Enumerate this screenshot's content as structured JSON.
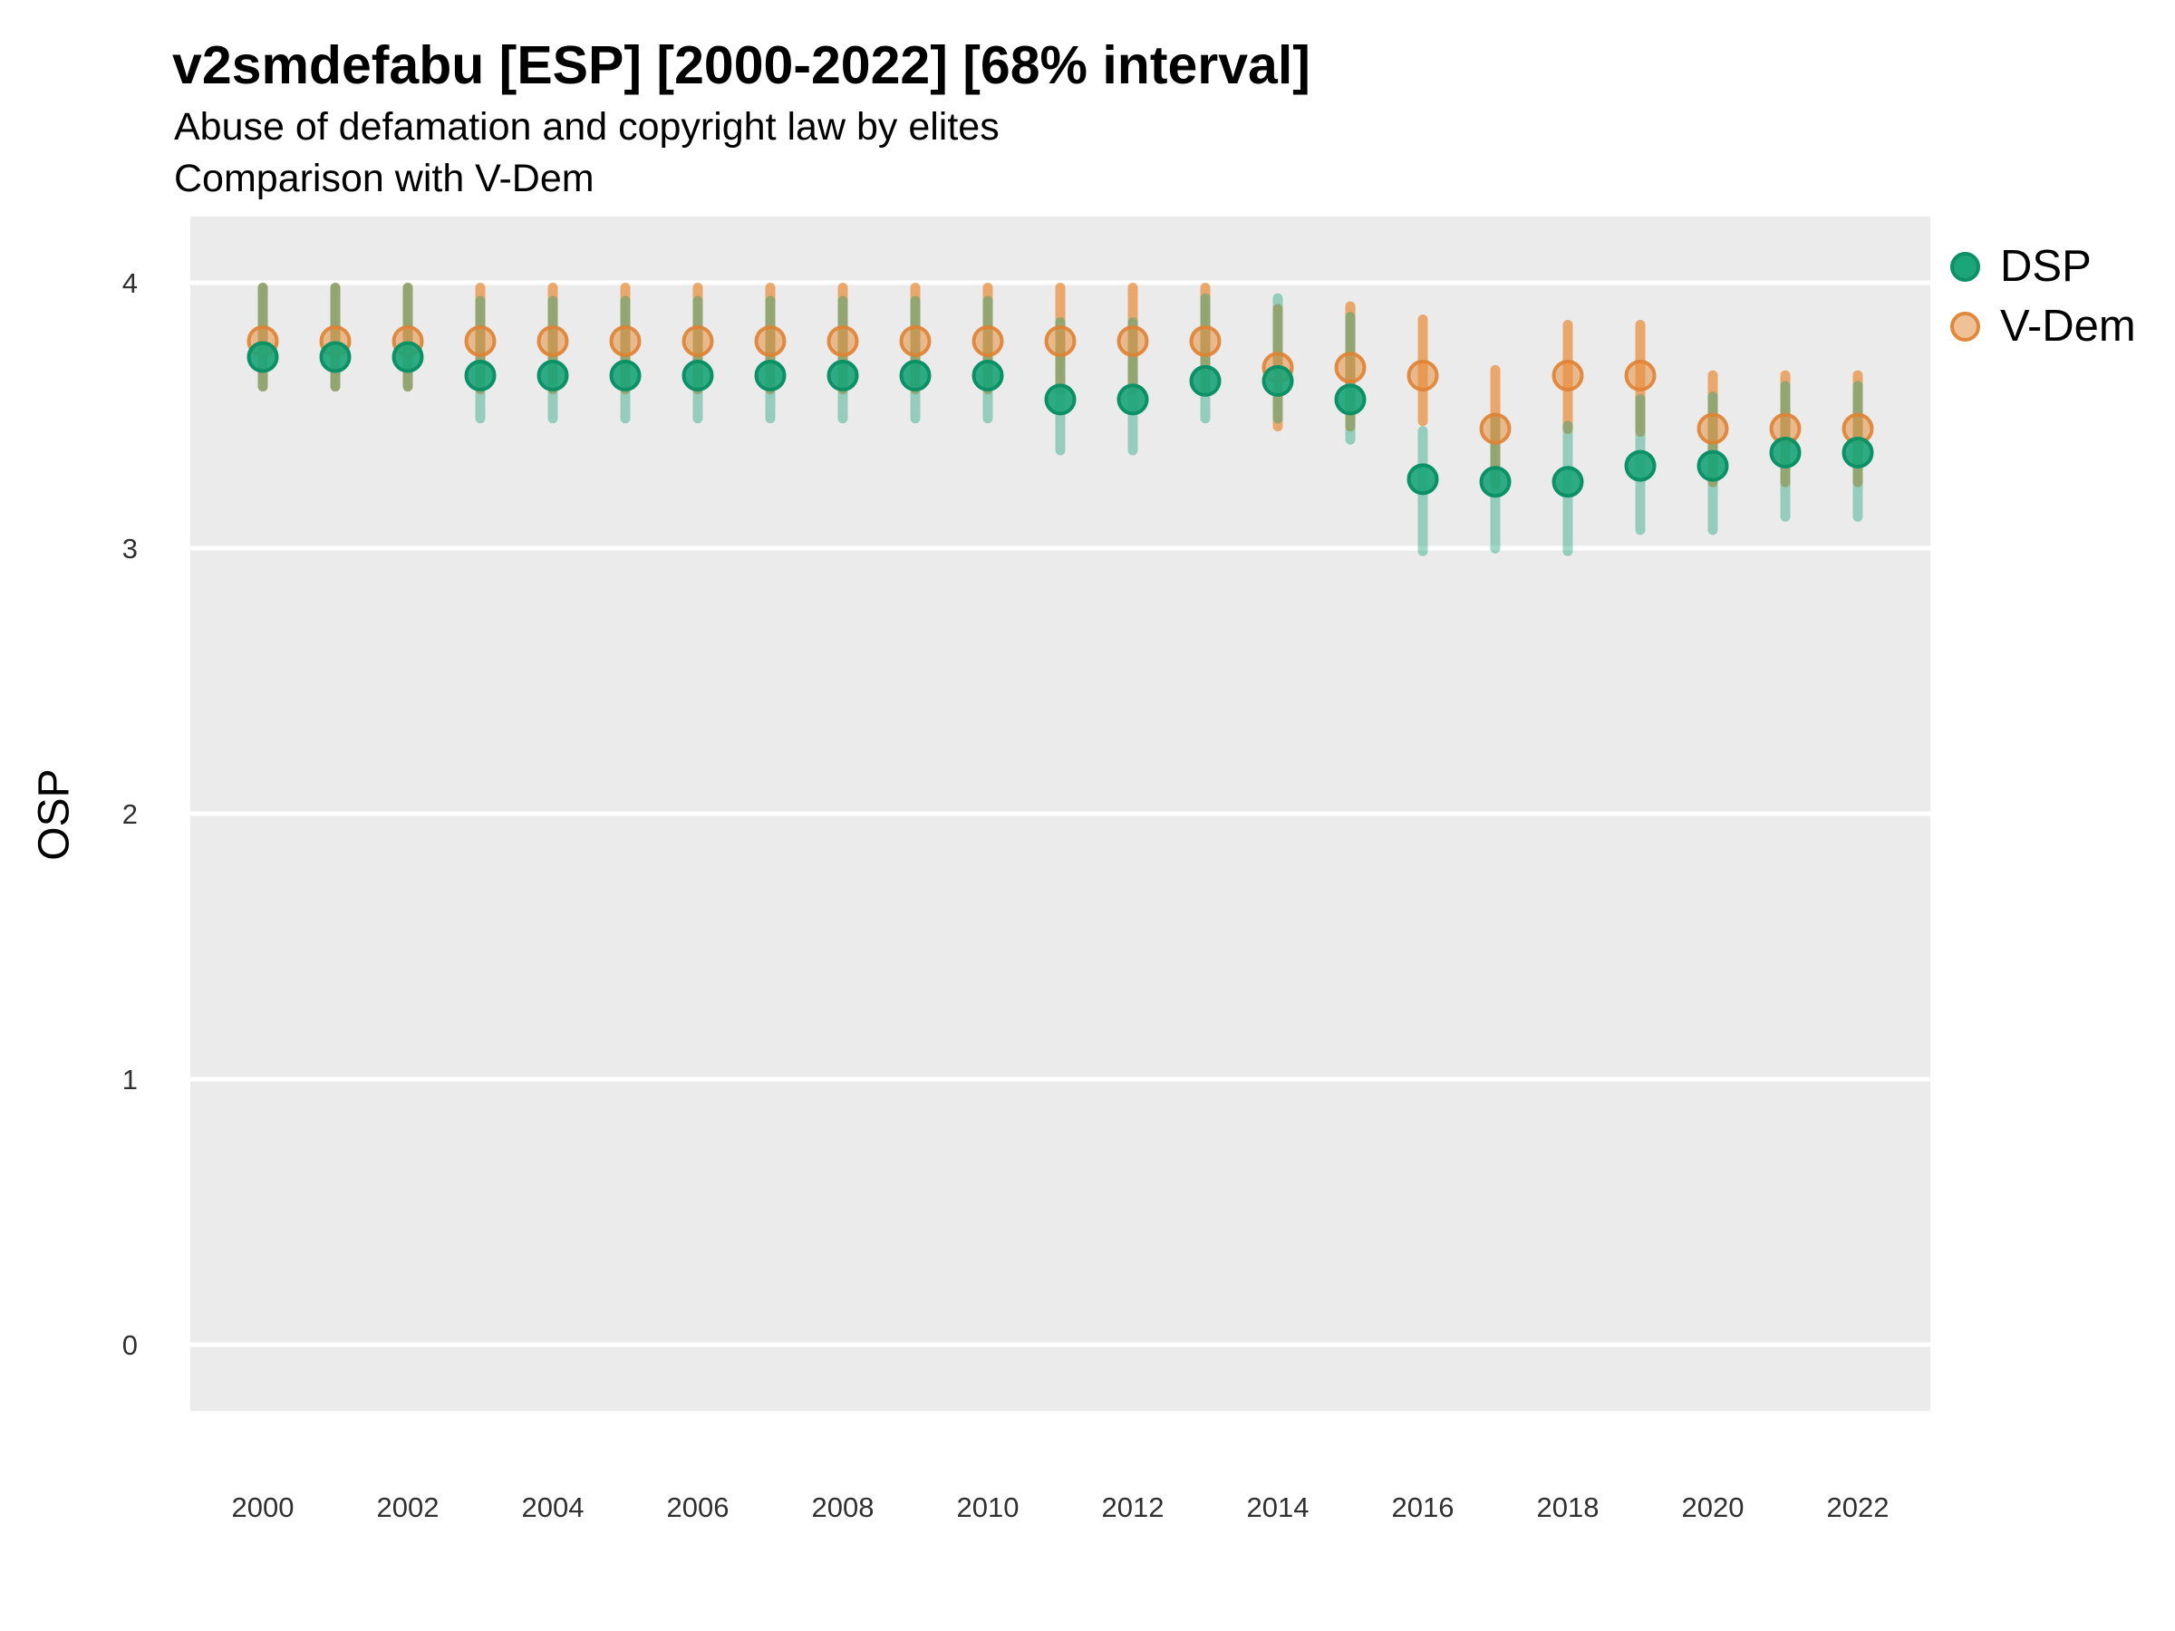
{
  "header": {
    "title": "v2smdefabu [ESP] [2000-2022] [68% interval]",
    "subtitle1": "Abuse of defamation and copyright law by elites",
    "subtitle2": "Comparison with V-Dem"
  },
  "legend": {
    "items": [
      {
        "label": "DSP",
        "color": "#1da57a"
      },
      {
        "label": "V-Dem",
        "color": "#f0c096"
      }
    ]
  },
  "axes": {
    "y_label": "OSP",
    "y_tick_labels": [
      "0",
      "1",
      "2",
      "3",
      "4"
    ],
    "x_tick_labels": [
      "2000",
      "2002",
      "2004",
      "2006",
      "2008",
      "2010",
      "2012",
      "2014",
      "2016",
      "2018",
      "2020",
      "2022"
    ]
  },
  "chart_data": {
    "type": "scatter",
    "title": "v2smdefabu [ESP] [2000-2022] [68% interval]",
    "subtitle": "Abuse of defamation and copyright law by elites",
    "note": "Comparison with V-Dem",
    "interval": "68%",
    "xlabel": "",
    "ylabel": "OSP",
    "x_domain": [
      1999,
      2023
    ],
    "y_domain": [
      -0.25,
      4.25
    ],
    "y_ticks": [
      0,
      1,
      2,
      3,
      4
    ],
    "x_ticks": [
      2000,
      2002,
      2004,
      2006,
      2008,
      2010,
      2012,
      2014,
      2016,
      2018,
      2020,
      2022
    ],
    "grid": "major-horizontal-only",
    "legend_position": "right-top",
    "x": [
      2000,
      2001,
      2002,
      2003,
      2004,
      2005,
      2006,
      2007,
      2008,
      2009,
      2010,
      2011,
      2012,
      2013,
      2014,
      2015,
      2016,
      2017,
      2018,
      2019,
      2020,
      2021,
      2022
    ],
    "series": [
      {
        "name": "DSP",
        "values": [
          3.72,
          3.72,
          3.72,
          3.65,
          3.65,
          3.65,
          3.65,
          3.65,
          3.65,
          3.65,
          3.65,
          3.56,
          3.56,
          3.63,
          3.63,
          3.56,
          3.26,
          3.25,
          3.25,
          3.31,
          3.31,
          3.36,
          3.36
        ],
        "lo": [
          3.59,
          3.59,
          3.59,
          3.47,
          3.47,
          3.47,
          3.47,
          3.47,
          3.47,
          3.47,
          3.47,
          3.35,
          3.35,
          3.47,
          3.47,
          3.39,
          2.97,
          2.98,
          2.97,
          3.05,
          3.05,
          3.1,
          3.1
        ],
        "hi": [
          4.0,
          4.0,
          4.0,
          3.95,
          3.95,
          3.95,
          3.95,
          3.95,
          3.95,
          3.95,
          3.95,
          3.87,
          3.87,
          3.96,
          3.96,
          3.89,
          3.46,
          3.51,
          3.48,
          3.58,
          3.59,
          3.63,
          3.63
        ],
        "point_fill": "#1da57a",
        "point_stroke": "#0c9166",
        "bar_color": "rgba(29,165,122,0.42)"
      },
      {
        "name": "V-Dem",
        "values": [
          3.78,
          3.78,
          3.78,
          3.78,
          3.78,
          3.78,
          3.78,
          3.78,
          3.78,
          3.78,
          3.78,
          3.78,
          3.78,
          3.78,
          3.68,
          3.68,
          3.65,
          3.45,
          3.65,
          3.65,
          3.45,
          3.45,
          3.45
        ],
        "lo": [
          3.59,
          3.59,
          3.59,
          3.58,
          3.58,
          3.58,
          3.58,
          3.58,
          3.58,
          3.58,
          3.58,
          3.58,
          3.58,
          3.58,
          3.44,
          3.44,
          3.46,
          3.22,
          3.43,
          3.42,
          3.23,
          3.23,
          3.23
        ],
        "hi": [
          4.0,
          4.0,
          4.0,
          4.0,
          4.0,
          4.0,
          4.0,
          4.0,
          4.0,
          4.0,
          4.0,
          4.0,
          4.0,
          4.0,
          3.92,
          3.93,
          3.88,
          3.69,
          3.86,
          3.86,
          3.67,
          3.67,
          3.67
        ],
        "point_fill": "rgba(231,143,66,0.55)",
        "point_stroke": "rgba(224,130,50,0.9)",
        "bar_color": "rgba(233,150,75,0.8)"
      }
    ]
  },
  "style": {
    "panel_bg": "#ebebeb",
    "grid_color": "#ffffff",
    "tick_text_color": "#303030"
  }
}
